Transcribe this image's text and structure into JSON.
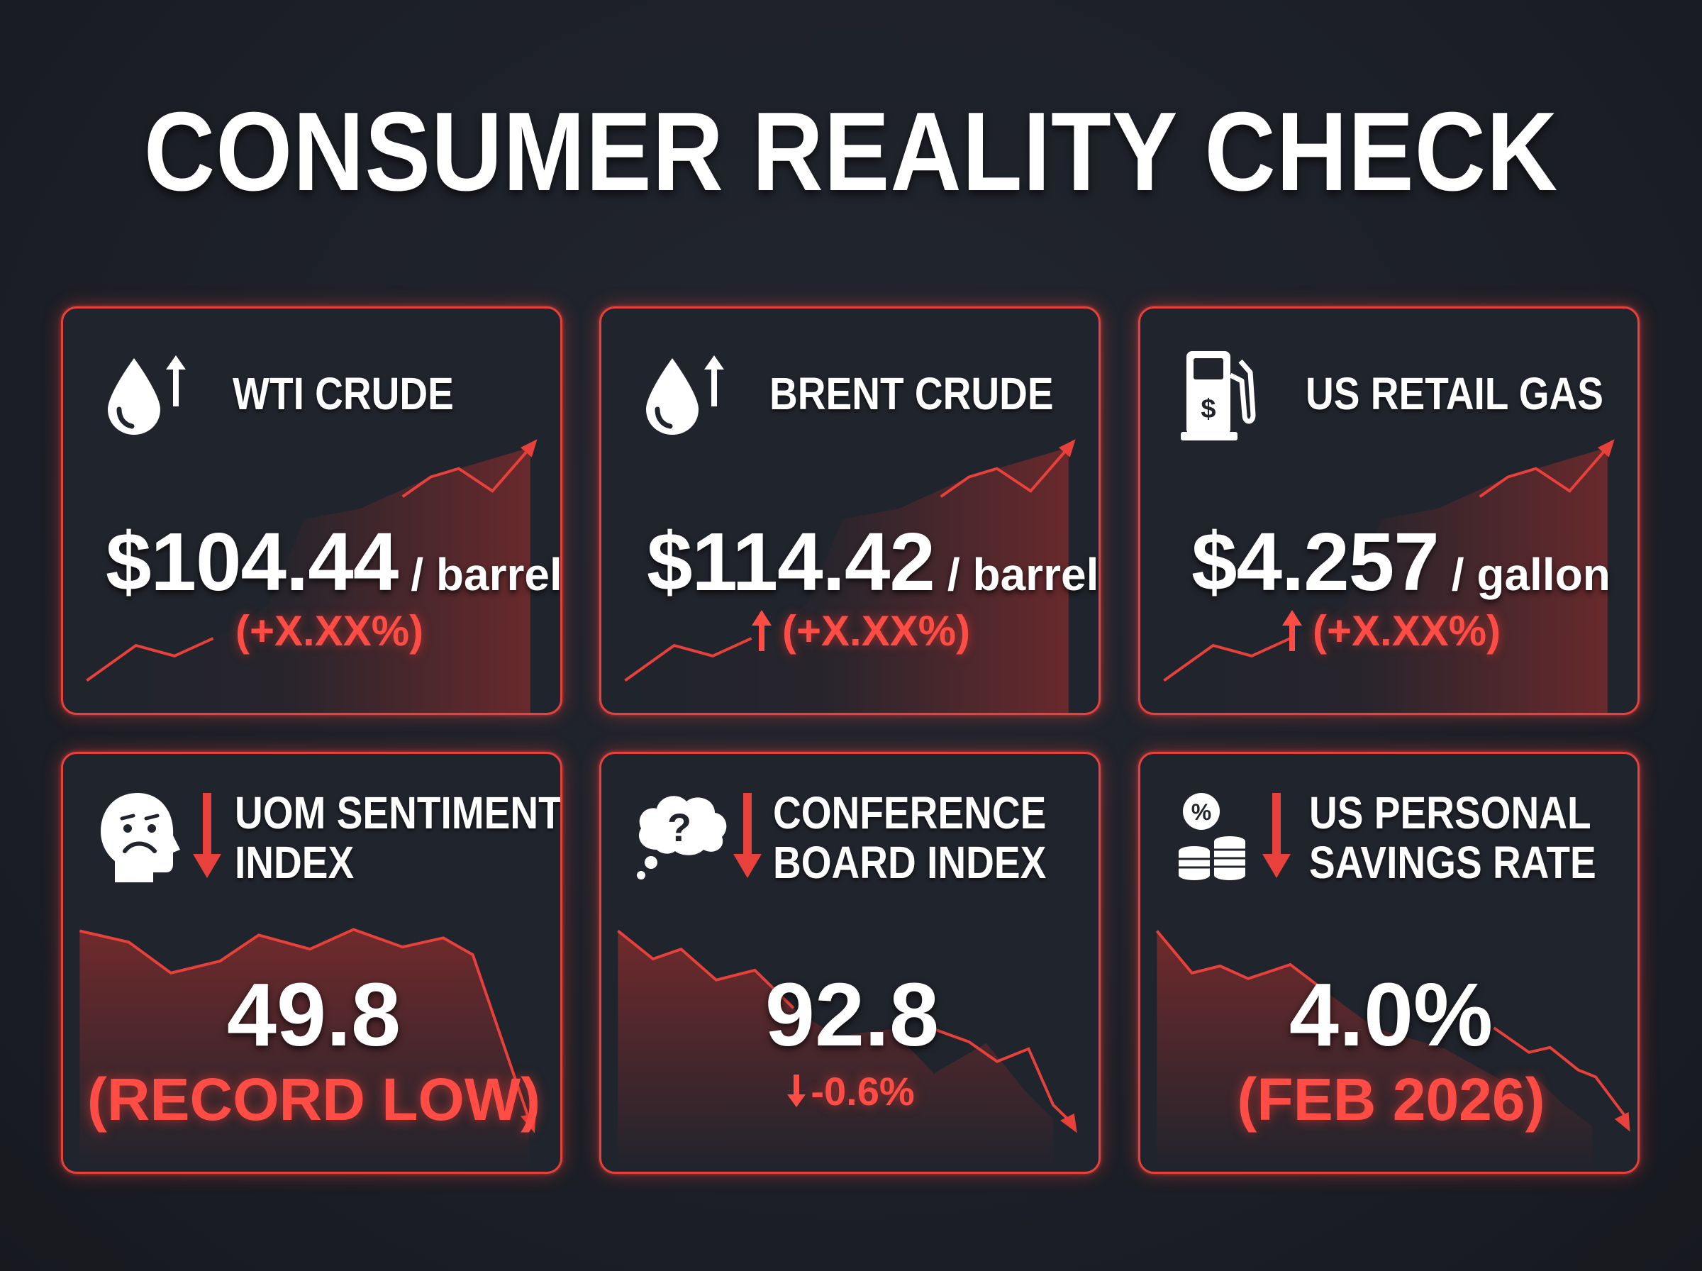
{
  "title": "CONSUMER REALITY CHECK",
  "colors": {
    "background": "#1d2027",
    "card": "#20242c",
    "accent": "#e8403a",
    "text": "#ffffff"
  },
  "cards": [
    {
      "label_lines": [
        "WTI CRUDE"
      ],
      "icon": "oil-drop-up-icon",
      "value": "$104.44",
      "unit": "/ barrel",
      "change": "(+X.XX%)",
      "trend": "up"
    },
    {
      "label_lines": [
        "BRENT CRUDE"
      ],
      "icon": "oil-drop-up-icon",
      "value": "$114.42",
      "unit": "/ barrel",
      "change": "(+X.XX%)",
      "trend": "up"
    },
    {
      "label_lines": [
        "US RETAIL GAS"
      ],
      "icon": "gas-pump-icon",
      "value": "$4.257",
      "unit": "/ gallon",
      "change": "(+X.XX%)",
      "trend": "up"
    },
    {
      "label_lines": [
        "UOM SENTIMENT",
        "INDEX"
      ],
      "icon": "sad-face-down-icon",
      "value": "49.8",
      "sub": "(RECORD LOW)",
      "trend": "down"
    },
    {
      "label_lines": [
        "CONFERENCE",
        "BOARD INDEX"
      ],
      "icon": "question-cloud-down-icon",
      "value": "92.8",
      "sub": "-0.6%",
      "trend": "down"
    },
    {
      "label_lines": [
        "US PERSONAL",
        "SAVINGS RATE"
      ],
      "icon": "percent-coins-down-icon",
      "value": "4.0%",
      "sub": "(FEB 2026)",
      "trend": "down"
    }
  ]
}
